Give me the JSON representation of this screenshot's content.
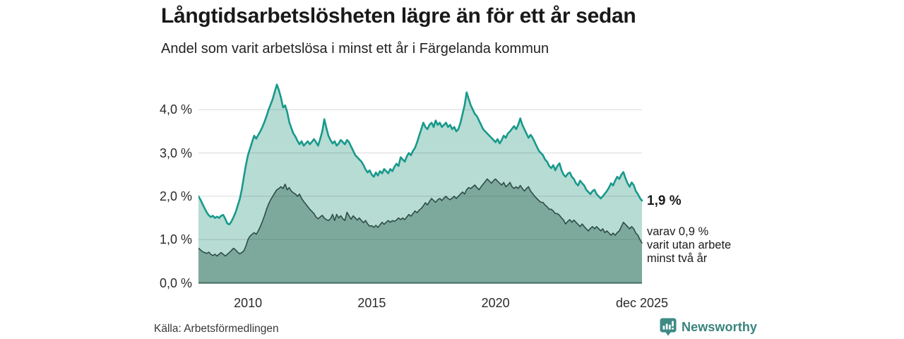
{
  "header": {
    "title": "Långtidsarbetslösheten lägre än för ett år sedan",
    "subtitle": "Andel som varit arbetslösa i minst ett år i Färgelanda kommun"
  },
  "chart_data": {
    "type": "area",
    "title": "Långtidsarbetslösheten lägre än för ett år sedan",
    "subtitle": "Andel som varit arbetslösa i minst ett år i Färgelanda kommun",
    "unit": "%",
    "x_start": "2008-01",
    "x_end": "2025-12",
    "x_step_months": 1,
    "grid": true,
    "ylim": [
      0,
      4.75
    ],
    "y_axis_ticks": [
      {
        "value": 0,
        "label": "0,0 %"
      },
      {
        "value": 1,
        "label": "1,0 %"
      },
      {
        "value": 2,
        "label": "2,0 %"
      },
      {
        "value": 3,
        "label": "3,0 %"
      },
      {
        "value": 4,
        "label": "4,0 %"
      }
    ],
    "x_axis_ticks": [
      {
        "year": 2010.0,
        "label": "2010"
      },
      {
        "year": 2015.0,
        "label": "2015"
      },
      {
        "year": 2020.0,
        "label": "2020"
      },
      {
        "year": 2025.917,
        "label": "dec 2025"
      }
    ],
    "series": [
      {
        "name": "Andel arbetslösa minst ett år",
        "end_value": 1.9,
        "line_color": "#18998b",
        "fill_color": "#b6dcd4",
        "values": [
          2.0,
          1.92,
          1.82,
          1.72,
          1.63,
          1.56,
          1.52,
          1.55,
          1.5,
          1.53,
          1.5,
          1.55,
          1.57,
          1.48,
          1.37,
          1.35,
          1.42,
          1.52,
          1.63,
          1.78,
          1.93,
          2.15,
          2.45,
          2.72,
          2.95,
          3.1,
          3.25,
          3.4,
          3.33,
          3.42,
          3.5,
          3.6,
          3.72,
          3.85,
          4.0,
          4.12,
          4.25,
          4.42,
          4.58,
          4.45,
          4.28,
          4.05,
          4.1,
          3.95,
          3.72,
          3.58,
          3.45,
          3.38,
          3.28,
          3.2,
          3.27,
          3.17,
          3.22,
          3.27,
          3.2,
          3.26,
          3.32,
          3.25,
          3.17,
          3.32,
          3.5,
          3.78,
          3.58,
          3.4,
          3.3,
          3.22,
          3.27,
          3.17,
          3.22,
          3.3,
          3.25,
          3.2,
          3.3,
          3.25,
          3.15,
          3.05,
          2.95,
          2.9,
          2.85,
          2.8,
          2.72,
          2.62,
          2.55,
          2.6,
          2.5,
          2.45,
          2.55,
          2.48,
          2.58,
          2.53,
          2.63,
          2.58,
          2.53,
          2.63,
          2.58,
          2.68,
          2.75,
          2.7,
          2.9,
          2.85,
          2.8,
          2.92,
          3.0,
          2.95,
          3.05,
          3.12,
          3.25,
          3.4,
          3.55,
          3.7,
          3.6,
          3.55,
          3.65,
          3.7,
          3.6,
          3.75,
          3.65,
          3.7,
          3.6,
          3.65,
          3.7,
          3.6,
          3.65,
          3.55,
          3.6,
          3.5,
          3.55,
          3.7,
          3.9,
          4.1,
          4.4,
          4.25,
          4.1,
          4.0,
          3.9,
          3.85,
          3.75,
          3.65,
          3.55,
          3.5,
          3.45,
          3.4,
          3.35,
          3.3,
          3.25,
          3.32,
          3.22,
          3.3,
          3.4,
          3.35,
          3.45,
          3.5,
          3.56,
          3.62,
          3.55,
          3.65,
          3.8,
          3.65,
          3.55,
          3.45,
          3.35,
          3.42,
          3.35,
          3.25,
          3.15,
          3.05,
          3.0,
          2.95,
          2.85,
          2.8,
          2.7,
          2.65,
          2.72,
          2.6,
          2.7,
          2.76,
          2.6,
          2.5,
          2.45,
          2.52,
          2.55,
          2.45,
          2.4,
          2.3,
          2.25,
          2.36,
          2.3,
          2.25,
          2.15,
          2.1,
          2.05,
          2.12,
          2.15,
          2.05,
          2.0,
          1.95,
          2.0,
          2.06,
          2.12,
          2.2,
          2.3,
          2.25,
          2.36,
          2.45,
          2.4,
          2.5,
          2.56,
          2.42,
          2.3,
          2.22,
          2.32,
          2.26,
          2.12,
          2.05,
          1.96,
          1.9
        ]
      },
      {
        "name": "varav utan arbete minst två år",
        "end_value": 0.9,
        "line_color": "#2e4d45",
        "fill_color": "#7da99d",
        "values": [
          0.8,
          0.76,
          0.72,
          0.7,
          0.68,
          0.71,
          0.66,
          0.63,
          0.66,
          0.62,
          0.66,
          0.7,
          0.66,
          0.62,
          0.66,
          0.7,
          0.75,
          0.8,
          0.76,
          0.71,
          0.67,
          0.7,
          0.74,
          0.85,
          1.0,
          1.08,
          1.12,
          1.16,
          1.12,
          1.2,
          1.3,
          1.42,
          1.55,
          1.7,
          1.82,
          1.92,
          2.0,
          2.08,
          2.15,
          2.18,
          2.22,
          2.18,
          2.28,
          2.15,
          2.2,
          2.12,
          2.08,
          2.05,
          2.0,
          2.05,
          1.95,
          1.88,
          1.82,
          1.76,
          1.7,
          1.65,
          1.6,
          1.52,
          1.48,
          1.52,
          1.56,
          1.5,
          1.46,
          1.44,
          1.48,
          1.58,
          1.44,
          1.58,
          1.5,
          1.55,
          1.48,
          1.44,
          1.63,
          1.55,
          1.47,
          1.55,
          1.5,
          1.45,
          1.5,
          1.44,
          1.39,
          1.44,
          1.36,
          1.31,
          1.32,
          1.28,
          1.33,
          1.28,
          1.34,
          1.4,
          1.35,
          1.4,
          1.44,
          1.4,
          1.44,
          1.42,
          1.45,
          1.5,
          1.46,
          1.5,
          1.46,
          1.52,
          1.58,
          1.54,
          1.6,
          1.66,
          1.62,
          1.68,
          1.72,
          1.78,
          1.85,
          1.8,
          1.88,
          1.95,
          1.9,
          1.86,
          1.92,
          1.95,
          1.9,
          1.96,
          2.0,
          1.95,
          1.92,
          1.96,
          2.0,
          1.95,
          2.0,
          2.05,
          2.1,
          2.05,
          2.15,
          2.2,
          2.18,
          2.22,
          2.26,
          2.2,
          2.15,
          2.22,
          2.28,
          2.34,
          2.4,
          2.35,
          2.3,
          2.36,
          2.4,
          2.35,
          2.3,
          2.26,
          2.32,
          2.22,
          2.26,
          2.32,
          2.22,
          2.18,
          2.22,
          2.18,
          2.25,
          2.18,
          2.12,
          2.18,
          2.22,
          2.12,
          2.06,
          2.0,
          1.95,
          1.9,
          1.86,
          1.86,
          1.8,
          1.76,
          1.7,
          1.7,
          1.66,
          1.6,
          1.6,
          1.56,
          1.5,
          1.45,
          1.36,
          1.42,
          1.46,
          1.4,
          1.45,
          1.4,
          1.35,
          1.3,
          1.36,
          1.3,
          1.25,
          1.2,
          1.26,
          1.3,
          1.25,
          1.3,
          1.25,
          1.2,
          1.25,
          1.16,
          1.2,
          1.15,
          1.1,
          1.15,
          1.1,
          1.16,
          1.2,
          1.3,
          1.4,
          1.35,
          1.3,
          1.25,
          1.3,
          1.25,
          1.15,
          1.1,
          1.0,
          0.92
        ]
      }
    ],
    "legend_position": "none"
  },
  "annotations": {
    "end_value_label": "1,9 %",
    "sub_lines": [
      "varav 0,9 %",
      "varit utan arbete",
      "minst två år"
    ]
  },
  "footer": {
    "source": "Källa: Arbetsförmedlingen",
    "brand": "Newsworthy"
  },
  "colors": {
    "grid_line": "#d7d7d7",
    "axis_zero_line": "#557a70",
    "text": "#1b1b1b",
    "brand_teal": "#3a837d",
    "brand_icon": "#3e8b85"
  }
}
